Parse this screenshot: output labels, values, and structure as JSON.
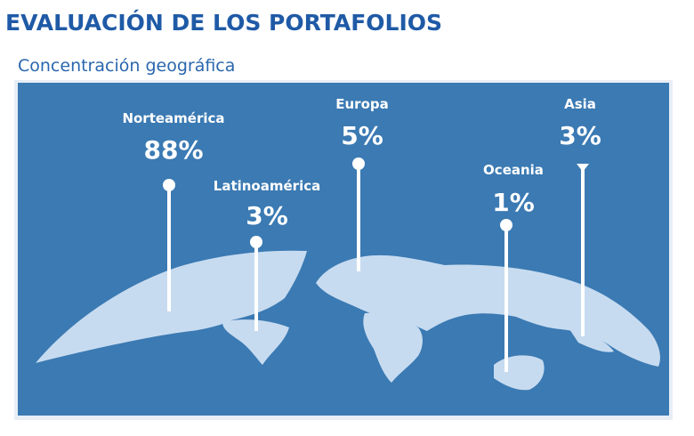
{
  "header": {
    "title": "EVALUACIÓN DE LOS PORTAFOLIOS",
    "subtitle": "Concentración geográfica"
  },
  "regions": [
    {
      "name": "Norteamérica",
      "share": "88%"
    },
    {
      "name": "Latinoamérica",
      "share": "3%"
    },
    {
      "name": "Europa",
      "share": "5%"
    },
    {
      "name": "Oceania",
      "share": "1%"
    },
    {
      "name": "Asia",
      "share": "3%"
    }
  ]
}
